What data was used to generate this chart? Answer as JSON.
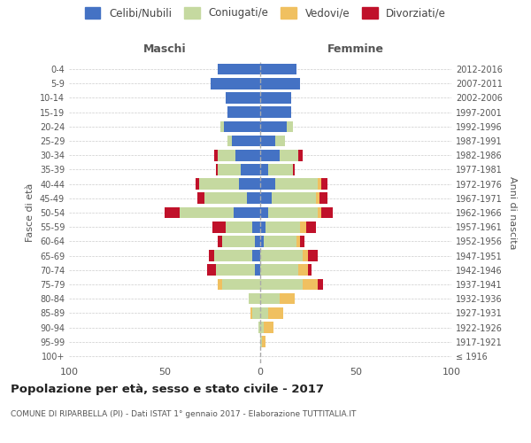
{
  "age_groups": [
    "100+",
    "95-99",
    "90-94",
    "85-89",
    "80-84",
    "75-79",
    "70-74",
    "65-69",
    "60-64",
    "55-59",
    "50-54",
    "45-49",
    "40-44",
    "35-39",
    "30-34",
    "25-29",
    "20-24",
    "15-19",
    "10-14",
    "5-9",
    "0-4"
  ],
  "birth_years": [
    "≤ 1916",
    "1917-1921",
    "1922-1926",
    "1927-1931",
    "1932-1936",
    "1937-1941",
    "1942-1946",
    "1947-1951",
    "1952-1956",
    "1957-1961",
    "1962-1966",
    "1967-1971",
    "1972-1976",
    "1977-1981",
    "1982-1986",
    "1987-1991",
    "1992-1996",
    "1997-2001",
    "2002-2006",
    "2007-2011",
    "2012-2016"
  ],
  "colors": {
    "celibi": "#4472C4",
    "coniugati": "#c5d9a0",
    "vedovi": "#f0c060",
    "divorziati": "#c0112a"
  },
  "maschi": {
    "celibi": [
      0,
      0,
      0,
      0,
      0,
      0,
      3,
      4,
      3,
      4,
      14,
      7,
      11,
      10,
      13,
      15,
      19,
      17,
      18,
      26,
      22
    ],
    "coniugati": [
      0,
      0,
      1,
      4,
      6,
      20,
      20,
      20,
      17,
      14,
      28,
      22,
      21,
      12,
      9,
      2,
      2,
      0,
      0,
      0,
      0
    ],
    "vedovi": [
      0,
      0,
      0,
      1,
      0,
      2,
      0,
      0,
      0,
      0,
      0,
      0,
      0,
      0,
      0,
      0,
      0,
      0,
      0,
      0,
      0
    ],
    "divorziati": [
      0,
      0,
      0,
      0,
      0,
      0,
      5,
      3,
      2,
      7,
      8,
      4,
      2,
      1,
      2,
      0,
      0,
      0,
      0,
      0,
      0
    ]
  },
  "femmine": {
    "nubili": [
      0,
      0,
      0,
      0,
      0,
      0,
      0,
      0,
      2,
      3,
      4,
      6,
      8,
      4,
      10,
      8,
      14,
      16,
      16,
      21,
      19
    ],
    "coniugate": [
      0,
      1,
      2,
      4,
      10,
      22,
      20,
      22,
      17,
      18,
      26,
      23,
      22,
      13,
      10,
      5,
      3,
      0,
      0,
      0,
      0
    ],
    "vedove": [
      0,
      2,
      5,
      8,
      8,
      8,
      5,
      3,
      2,
      3,
      2,
      2,
      2,
      0,
      0,
      0,
      0,
      0,
      0,
      0,
      0
    ],
    "divorziate": [
      0,
      0,
      0,
      0,
      0,
      3,
      2,
      5,
      2,
      5,
      6,
      4,
      3,
      1,
      2,
      0,
      0,
      0,
      0,
      0,
      0
    ]
  },
  "xlim": 100,
  "title": "Popolazione per età, sesso e stato civile - 2017",
  "subtitle": "COMUNE DI RIPARBELLA (PI) - Dati ISTAT 1° gennaio 2017 - Elaborazione TUTTITALIA.IT",
  "ylabel_left": "Fasce di età",
  "ylabel_right": "Anni di nascita",
  "legend_labels": [
    "Celibi/Nubili",
    "Coniugati/e",
    "Vedovi/e",
    "Divorziati/e"
  ],
  "maschi_label": "Maschi",
  "femmine_label": "Femmine",
  "bg_color": "#ffffff",
  "grid_color": "#cccccc",
  "text_color": "#555555",
  "title_color": "#222222"
}
